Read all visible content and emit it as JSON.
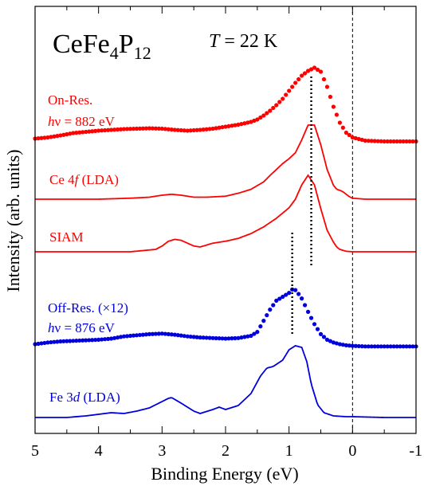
{
  "chart_data": {
    "type": "line",
    "title_compound": {
      "base1": "CeFe",
      "sub1": "4",
      "base2": "P",
      "sub2": "12"
    },
    "temperature": {
      "symbol": "T",
      "value": " = 22 K"
    },
    "xlabel": "Binding Energy (eV)",
    "ylabel": "Intensity (arb. units)",
    "xlim": [
      5,
      -1
    ],
    "x_reversed": true,
    "xticks": [
      5,
      4,
      3,
      2,
      1,
      0,
      -1
    ],
    "xtick_labels": [
      "5",
      "4",
      "3",
      "2",
      "1",
      "0",
      "-1"
    ],
    "fermi_level_line": 0,
    "colors": {
      "red": "#ff0000",
      "blue": "#0000dd",
      "axis": "#000000"
    },
    "labels": {
      "on_res_1": "On-Res.",
      "on_res_hv_sym": "h",
      "on_res_hv_nu": "ν",
      "on_res_hv_val": " = 882 eV",
      "ce4f_a": "Ce 4",
      "ce4f_f": "f",
      "ce4f_b": "  (LDA)",
      "siam": "SIAM",
      "off_res_1": "Off-Res. (×12)",
      "off_res_hv_sym": "h",
      "off_res_hv_nu": "ν",
      "off_res_hv_val": " = 876 eV",
      "fe3d_a": "Fe 3",
      "fe3d_d": "d",
      "fe3d_b": "  (LDA)"
    },
    "series": [
      {
        "style": "markers",
        "color": "#ff0000",
        "x": [
          5.0,
          4.8,
          4.6,
          4.4,
          4.2,
          4.0,
          3.8,
          3.6,
          3.4,
          3.2,
          3.0,
          2.8,
          2.6,
          2.4,
          2.2,
          2.0,
          1.8,
          1.6,
          1.5,
          1.4,
          1.3,
          1.2,
          1.1,
          1.0,
          0.9,
          0.8,
          0.7,
          0.6,
          0.5,
          0.4,
          0.3,
          0.2,
          0.1,
          0.0,
          -0.2,
          -0.5,
          -1.0
        ],
        "y": [
          0.0,
          0.03,
          0.08,
          0.14,
          0.17,
          0.2,
          0.22,
          0.24,
          0.25,
          0.26,
          0.25,
          0.22,
          0.2,
          0.22,
          0.25,
          0.3,
          0.35,
          0.42,
          0.48,
          0.58,
          0.7,
          0.84,
          1.0,
          1.2,
          1.4,
          1.58,
          1.7,
          1.78,
          1.68,
          1.3,
          0.8,
          0.4,
          0.15,
          0.03,
          -0.05,
          -0.07,
          -0.07
        ]
      },
      {
        "style": "line",
        "color": "#ff0000",
        "x": [
          5.0,
          4.5,
          4.0,
          3.5,
          3.2,
          3.0,
          2.85,
          2.7,
          2.5,
          2.3,
          2.0,
          1.8,
          1.6,
          1.4,
          1.3,
          1.2,
          1.1,
          1.0,
          0.9,
          0.8,
          0.7,
          0.6,
          0.5,
          0.4,
          0.3,
          0.25,
          0.2,
          0.15,
          0.1,
          0.05,
          0.0,
          -0.2,
          -1.0
        ],
        "y": [
          0.0,
          0.0,
          0.0,
          0.02,
          0.04,
          0.08,
          0.1,
          0.08,
          0.04,
          0.04,
          0.06,
          0.12,
          0.2,
          0.35,
          0.48,
          0.6,
          0.72,
          0.82,
          0.94,
          1.2,
          1.5,
          1.5,
          1.1,
          0.6,
          0.28,
          0.2,
          0.18,
          0.15,
          0.1,
          0.05,
          0.02,
          0.0,
          0.0
        ]
      },
      {
        "style": "line",
        "color": "#ff0000",
        "x": [
          5.0,
          4.0,
          3.5,
          3.1,
          3.0,
          2.9,
          2.8,
          2.7,
          2.6,
          2.5,
          2.4,
          2.3,
          2.2,
          2.0,
          1.8,
          1.6,
          1.4,
          1.2,
          1.0,
          0.9,
          0.8,
          0.7,
          0.6,
          0.5,
          0.4,
          0.3,
          0.25,
          0.2,
          0.1,
          0.0,
          -1.0
        ],
        "y": [
          0.0,
          0.0,
          0.0,
          0.05,
          0.12,
          0.22,
          0.26,
          0.24,
          0.18,
          0.12,
          0.1,
          0.14,
          0.18,
          0.22,
          0.28,
          0.38,
          0.52,
          0.7,
          0.92,
          1.1,
          1.4,
          1.6,
          1.4,
          0.9,
          0.45,
          0.2,
          0.1,
          0.05,
          0.01,
          0.0,
          0.0
        ]
      },
      {
        "style": "markers",
        "color": "#0000dd",
        "x": [
          5.0,
          4.8,
          4.6,
          4.4,
          4.2,
          4.0,
          3.8,
          3.6,
          3.4,
          3.2,
          3.0,
          2.8,
          2.6,
          2.4,
          2.2,
          2.0,
          1.8,
          1.6,
          1.5,
          1.4,
          1.3,
          1.2,
          1.1,
          1.0,
          0.95,
          0.9,
          0.85,
          0.8,
          0.7,
          0.6,
          0.5,
          0.4,
          0.3,
          0.2,
          0.1,
          0.0,
          -0.2,
          -0.5,
          -1.0
        ],
        "y": [
          0.0,
          0.03,
          0.05,
          0.06,
          0.07,
          0.08,
          0.1,
          0.14,
          0.16,
          0.18,
          0.19,
          0.17,
          0.14,
          0.12,
          0.11,
          0.1,
          0.11,
          0.15,
          0.22,
          0.42,
          0.62,
          0.78,
          0.85,
          0.92,
          0.98,
          0.97,
          0.9,
          0.82,
          0.58,
          0.36,
          0.18,
          0.08,
          0.03,
          0.0,
          -0.02,
          -0.03,
          -0.04,
          -0.04,
          -0.04
        ]
      },
      {
        "style": "line",
        "color": "#0000dd",
        "x": [
          5.0,
          4.5,
          4.2,
          4.0,
          3.8,
          3.6,
          3.4,
          3.2,
          3.0,
          2.9,
          2.85,
          2.7,
          2.5,
          2.4,
          2.2,
          2.1,
          2.0,
          1.8,
          1.6,
          1.45,
          1.35,
          1.25,
          1.1,
          1.0,
          0.9,
          0.8,
          0.72,
          0.65,
          0.55,
          0.45,
          0.3,
          0.1,
          0.0,
          -0.5,
          -1.0
        ],
        "y": [
          0.0,
          0.0,
          0.02,
          0.04,
          0.06,
          0.05,
          0.08,
          0.12,
          0.2,
          0.24,
          0.25,
          0.18,
          0.08,
          0.05,
          0.1,
          0.13,
          0.1,
          0.15,
          0.3,
          0.52,
          0.62,
          0.64,
          0.72,
          0.85,
          0.9,
          0.88,
          0.7,
          0.42,
          0.16,
          0.06,
          0.02,
          0.01,
          0.01,
          0.0,
          0.0
        ]
      }
    ],
    "peak_markers": [
      {
        "x": 0.65,
        "color": "#000000"
      },
      {
        "x": 0.95,
        "color": "#000000"
      }
    ]
  }
}
